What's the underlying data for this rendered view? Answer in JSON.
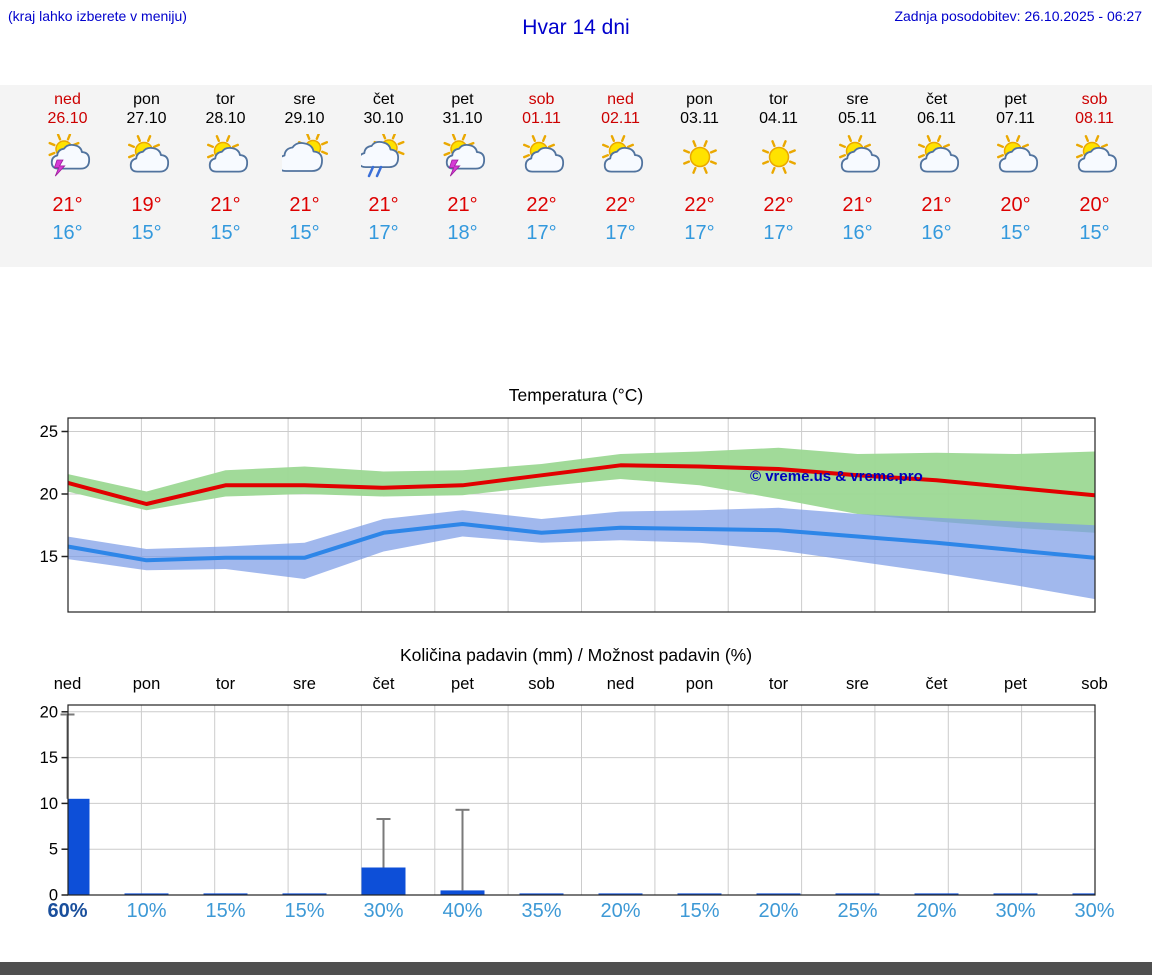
{
  "page": {
    "hint": "(kraj lahko izberete v meniju)",
    "title": "Hvar 14 dni",
    "updated": "Zadnja posodobitev: 26.10.2025 - 06:27",
    "copyright": "© vreme.us & vreme.pro"
  },
  "colors": {
    "header_blue": "#0000cc",
    "weekend_red": "#cc0000",
    "high_red": "#dd0000",
    "low_blue": "#3399dd",
    "percent_blue": "#3d99d6",
    "percent_emphasis": "#1a4f9c",
    "strip_bg": "#f4f4f4"
  },
  "forecast_days": [
    {
      "name": "ned",
      "date": "26.10",
      "weekend": true,
      "icon": "sun-cloud-lightning-icon",
      "high": "21°",
      "low": "16°"
    },
    {
      "name": "pon",
      "date": "27.10",
      "weekend": false,
      "icon": "sun-cloud-icon",
      "high": "19°",
      "low": "15°"
    },
    {
      "name": "tor",
      "date": "28.10",
      "weekend": false,
      "icon": "sun-cloud-icon",
      "high": "21°",
      "low": "15°"
    },
    {
      "name": "sre",
      "date": "29.10",
      "weekend": false,
      "icon": "cloud-sun-icon",
      "high": "21°",
      "low": "15°"
    },
    {
      "name": "čet",
      "date": "30.10",
      "weekend": false,
      "icon": "sun-cloud-rain-icon",
      "high": "21°",
      "low": "17°"
    },
    {
      "name": "pet",
      "date": "31.10",
      "weekend": false,
      "icon": "sun-cloud-lightning-icon",
      "high": "21°",
      "low": "18°"
    },
    {
      "name": "sob",
      "date": "01.11",
      "weekend": true,
      "icon": "sun-cloud-icon",
      "high": "22°",
      "low": "17°"
    },
    {
      "name": "ned",
      "date": "02.11",
      "weekend": true,
      "icon": "sun-cloud-icon",
      "high": "22°",
      "low": "17°"
    },
    {
      "name": "pon",
      "date": "03.11",
      "weekend": false,
      "icon": "sun-icon",
      "high": "22°",
      "low": "17°"
    },
    {
      "name": "tor",
      "date": "04.11",
      "weekend": false,
      "icon": "sun-icon",
      "high": "22°",
      "low": "17°"
    },
    {
      "name": "sre",
      "date": "05.11",
      "weekend": false,
      "icon": "sun-cloud-icon",
      "high": "21°",
      "low": "16°"
    },
    {
      "name": "čet",
      "date": "06.11",
      "weekend": false,
      "icon": "sun-cloud-icon",
      "high": "21°",
      "low": "16°"
    },
    {
      "name": "pet",
      "date": "07.11",
      "weekend": false,
      "icon": "sun-cloud-icon",
      "high": "20°",
      "low": "15°"
    },
    {
      "name": "sob",
      "date": "08.11",
      "weekend": true,
      "icon": "sun-cloud-icon",
      "high": "20°",
      "low": "15°"
    }
  ],
  "chart_data": [
    {
      "type": "line",
      "title": "Temperatura (°C)",
      "categories": [
        "ned",
        "pon",
        "tor",
        "sre",
        "čet",
        "pet",
        "sob",
        "ned",
        "pon",
        "tor",
        "sre",
        "čet",
        "pet",
        "sob"
      ],
      "ylim": [
        10.5,
        26.1
      ],
      "yticks": [
        15,
        20,
        25
      ],
      "grid": true,
      "legend_position": "none",
      "series": [
        {
          "name": "max-temperature",
          "color": "#e10000",
          "values": [
            20.9,
            19.2,
            20.7,
            20.7,
            20.5,
            20.7,
            21.5,
            22.3,
            22.2,
            22.0,
            21.5,
            21.1,
            20.5,
            19.9
          ]
        },
        {
          "name": "min-temperature",
          "color": "#2e86e8",
          "values": [
            15.8,
            14.7,
            14.9,
            14.9,
            16.9,
            17.6,
            16.9,
            17.3,
            17.2,
            17.1,
            16.6,
            16.1,
            15.5,
            14.9
          ]
        }
      ],
      "bands": [
        {
          "name": "max-temperature-range",
          "color": "#9cd894",
          "upper": [
            21.6,
            20.2,
            21.9,
            22.2,
            21.8,
            21.9,
            22.4,
            23.2,
            23.4,
            23.7,
            23.2,
            23.3,
            23.2,
            23.4
          ],
          "lower": [
            20.2,
            18.7,
            19.8,
            20.0,
            19.8,
            19.9,
            20.6,
            21.2,
            20.7,
            19.6,
            18.4,
            17.8,
            17.3,
            16.9
          ]
        },
        {
          "name": "min-temperature-range",
          "color": "#7d9ce6",
          "upper": [
            16.6,
            15.6,
            15.8,
            16.1,
            18.0,
            18.7,
            18.0,
            18.6,
            18.7,
            18.9,
            18.4,
            18.1,
            17.8,
            17.5
          ],
          "lower": [
            14.8,
            13.9,
            14.0,
            13.2,
            15.4,
            16.6,
            16.1,
            16.3,
            16.1,
            15.5,
            14.6,
            13.7,
            12.7,
            11.6
          ]
        }
      ],
      "annotations": [
        "© vreme.us & vreme.pro"
      ]
    },
    {
      "type": "bar",
      "title": "Količina padavin (mm) / Možnost padavin (%)",
      "categories": [
        "ned",
        "pon",
        "tor",
        "sre",
        "čet",
        "pet",
        "sob",
        "ned",
        "pon",
        "tor",
        "sre",
        "čet",
        "pet",
        "sob"
      ],
      "ylim": [
        0,
        20.7
      ],
      "yticks": [
        0,
        5,
        10,
        15,
        20
      ],
      "grid": true,
      "bar_color": "#0d4fd8",
      "whisker_color": "#7a7a7a",
      "values_mm": [
        10.5,
        0.1,
        0.1,
        0.1,
        3,
        0.5,
        0.1,
        0.1,
        0.1,
        0.1,
        0.1,
        0.1,
        0.1,
        0.1
      ],
      "whisker_max_mm": [
        19.7,
        0,
        0,
        0,
        8.3,
        9.3,
        0,
        0,
        0,
        0,
        0,
        0,
        0,
        0
      ],
      "probability": [
        "60%",
        "10%",
        "15%",
        "15%",
        "30%",
        "40%",
        "35%",
        "20%",
        "15%",
        "20%",
        "25%",
        "20%",
        "30%",
        "30%"
      ]
    }
  ]
}
